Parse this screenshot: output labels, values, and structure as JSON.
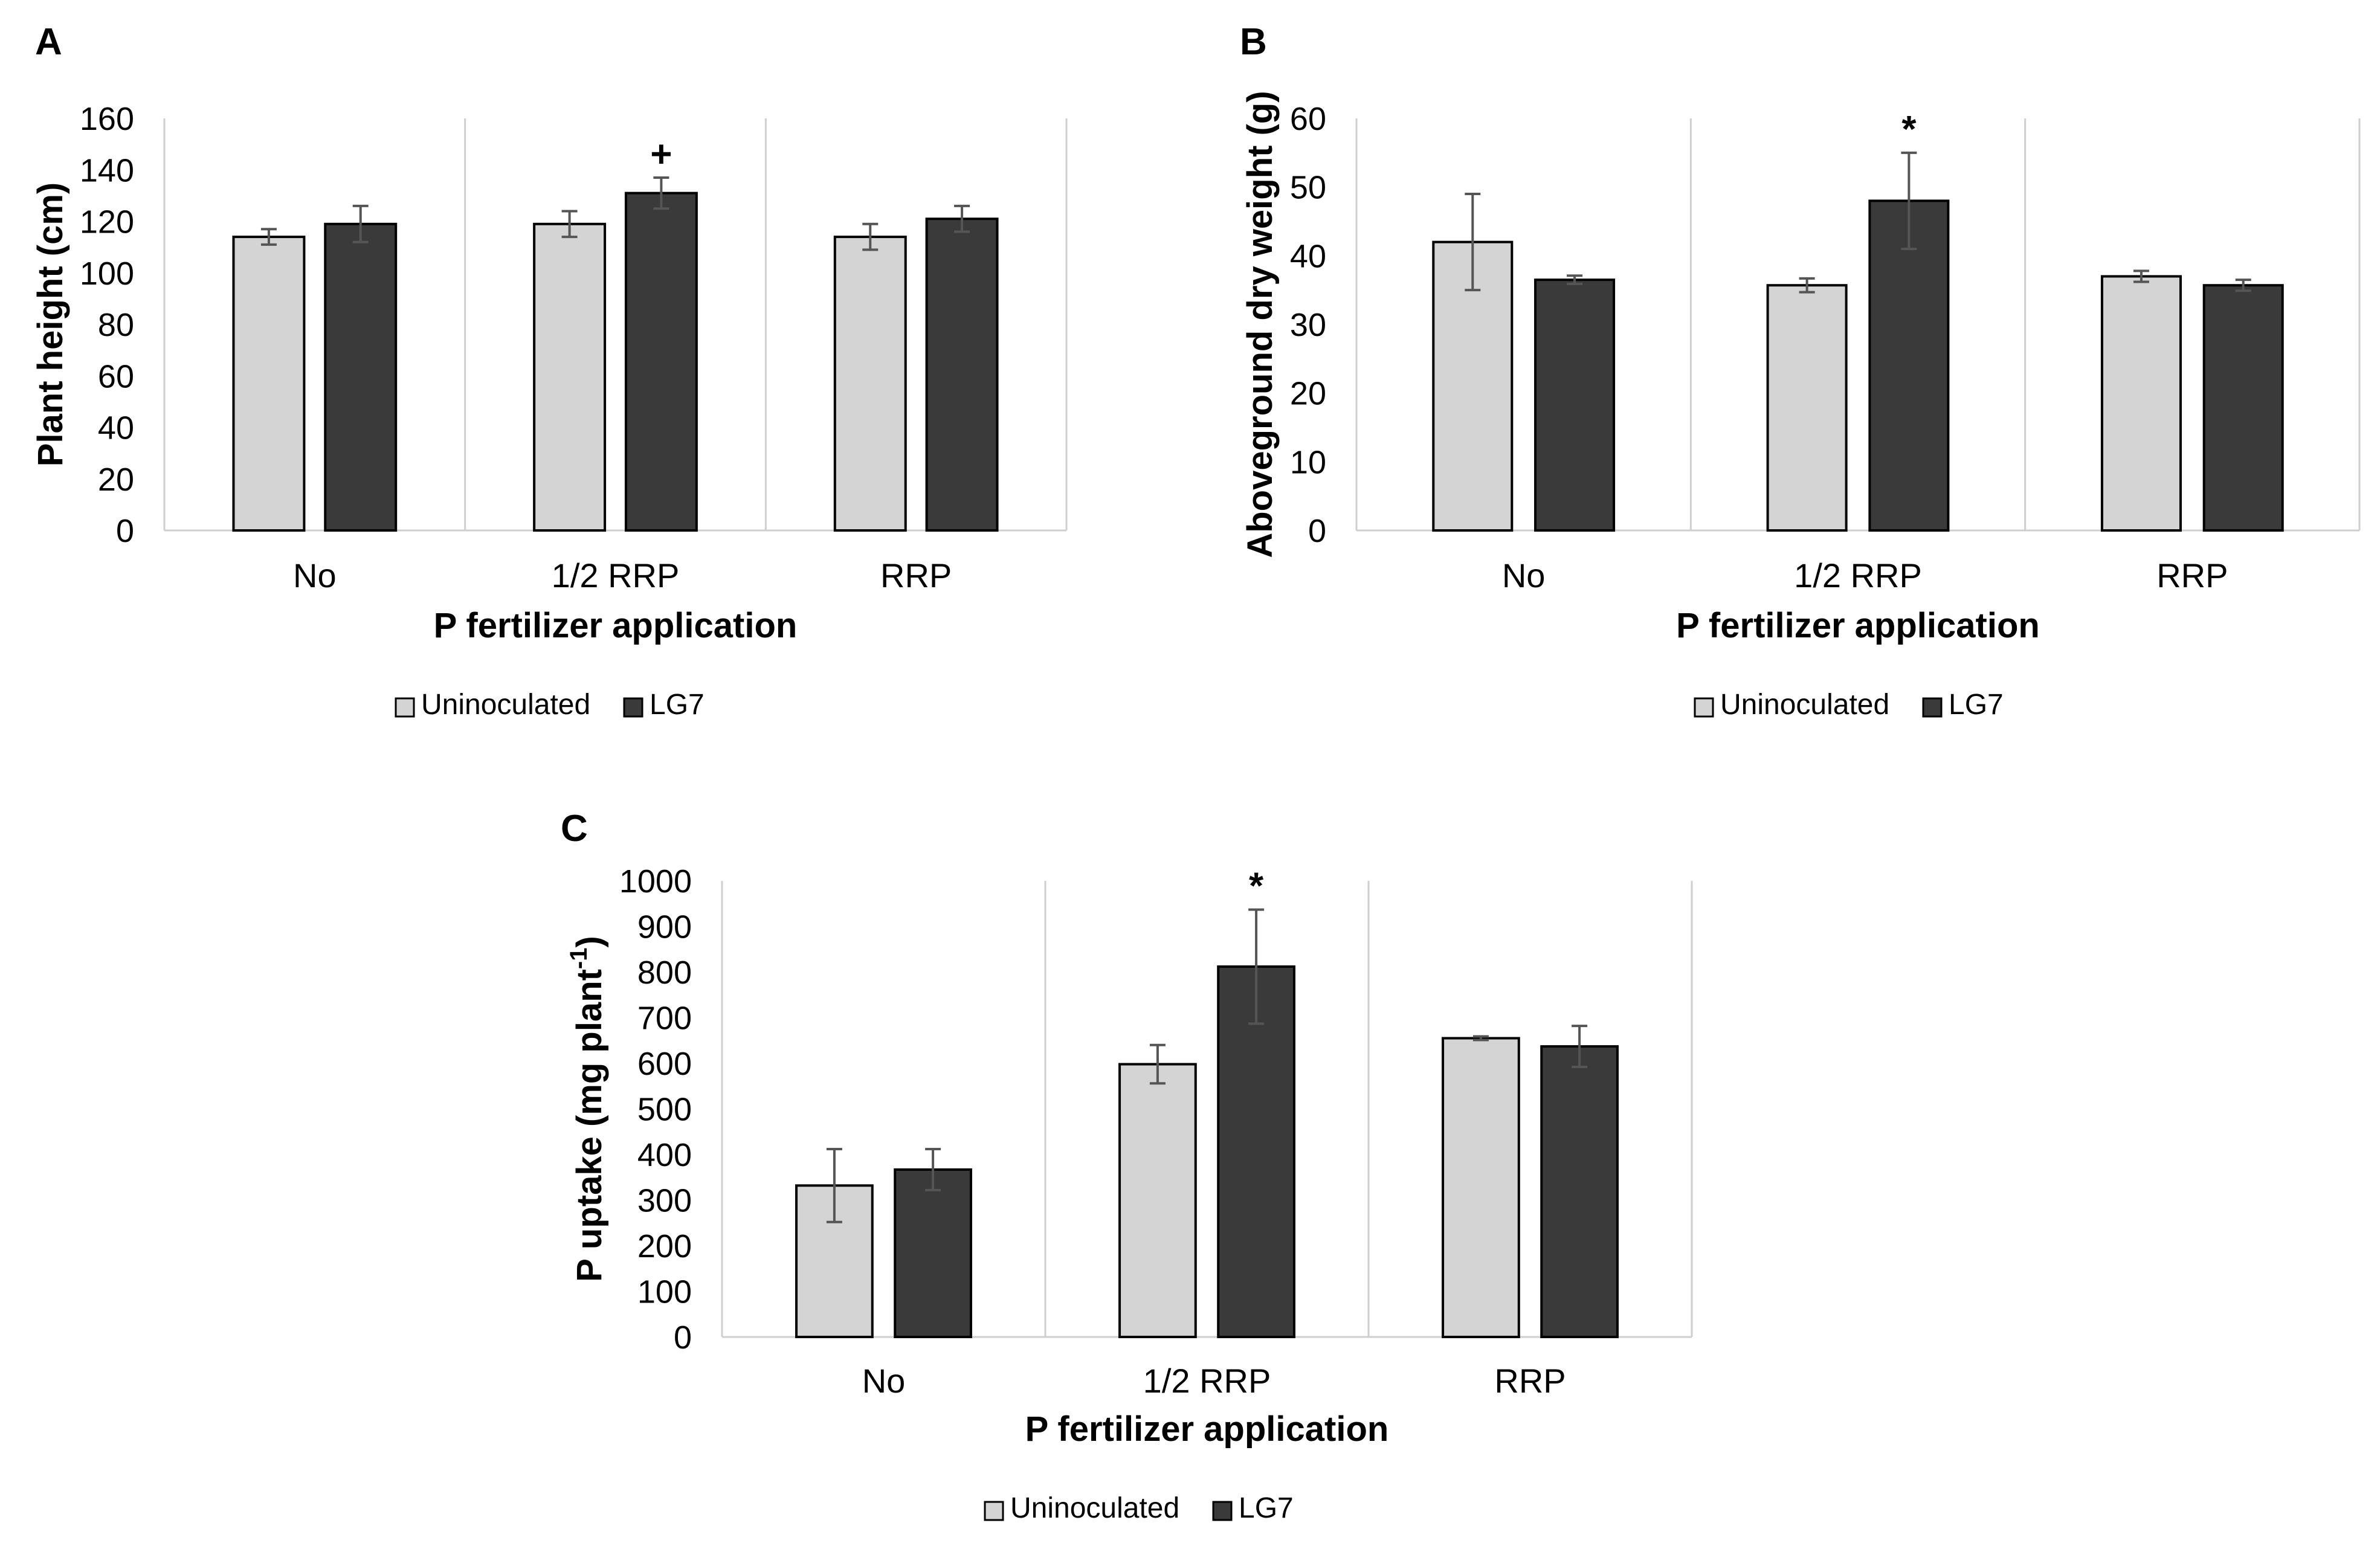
{
  "figure": {
    "colors": {
      "uninoculated": "#d4d4d4",
      "lg7": "#3a3a3a",
      "bar_stroke": "#000000",
      "error_bar": "#555555",
      "grid": "#cfcfcf"
    }
  },
  "chart_data": [
    {
      "panel": "A",
      "type": "bar",
      "categories": [
        "No",
        "1/2 RRP",
        "RRP"
      ],
      "series": [
        {
          "name": "Uninoculated",
          "values": [
            114,
            119,
            114
          ],
          "errors": [
            3,
            5,
            5
          ]
        },
        {
          "name": "LG7",
          "values": [
            119,
            131,
            121
          ],
          "errors": [
            7,
            6,
            5
          ]
        }
      ],
      "annotations": [
        {
          "category_index": 1,
          "series_index": 1,
          "text": "+"
        }
      ],
      "xlabel": "P fertilizer application",
      "ylabel": "Plant height (cm)",
      "ylabel_sup": "",
      "ylabel_after": "",
      "ylim": [
        0,
        160
      ],
      "yticks": [
        0,
        20,
        40,
        60,
        80,
        100,
        120,
        140,
        160
      ],
      "grid": "vertical category separators",
      "legend_position": "bottom-center"
    },
    {
      "panel": "B",
      "type": "bar",
      "categories": [
        "No",
        "1/2 RRP",
        "RRP"
      ],
      "series": [
        {
          "name": "Uninoculated",
          "values": [
            42,
            35.7,
            37
          ],
          "errors": [
            7,
            1,
            0.8
          ]
        },
        {
          "name": "LG7",
          "values": [
            36.5,
            48,
            35.7
          ],
          "errors": [
            0.6,
            7,
            0.8
          ]
        }
      ],
      "annotations": [
        {
          "category_index": 1,
          "series_index": 1,
          "text": "*"
        }
      ],
      "xlabel": "P fertilizer application",
      "ylabel": "Aboveground dry weight (g)",
      "ylabel_sup": "",
      "ylabel_after": "",
      "ylim": [
        0,
        60
      ],
      "yticks": [
        0,
        10,
        20,
        30,
        40,
        50,
        60
      ],
      "grid": "vertical category separators",
      "legend_position": "bottom-center"
    },
    {
      "panel": "C",
      "type": "bar",
      "categories": [
        "No",
        "1/2 RRP",
        "RRP"
      ],
      "series": [
        {
          "name": "Uninoculated",
          "values": [
            332,
            598,
            655
          ],
          "errors": [
            80,
            42,
            4
          ]
        },
        {
          "name": "LG7",
          "values": [
            367,
            812,
            637
          ],
          "errors": [
            45,
            125,
            45
          ]
        }
      ],
      "annotations": [
        {
          "category_index": 1,
          "series_index": 1,
          "text": "*"
        }
      ],
      "xlabel": "P fertilizer application",
      "ylabel": "P uptake (mg plant",
      "ylabel_sup": "-1",
      "ylabel_after": ")",
      "ylim": [
        0,
        1000
      ],
      "yticks": [
        0,
        100,
        200,
        300,
        400,
        500,
        600,
        700,
        800,
        900,
        1000
      ],
      "grid": "vertical category separators",
      "legend_position": "bottom-center"
    }
  ]
}
